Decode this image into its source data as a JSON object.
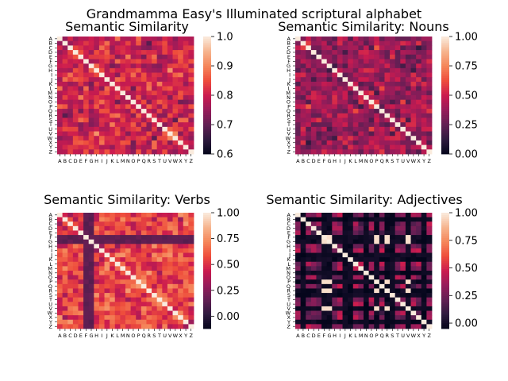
{
  "figure": {
    "suptitle": "Grandmamma Easy's Illuminated scriptural alphabet"
  },
  "palette": {
    "colormap": "rocket",
    "stops": [
      "#03051a",
      "#2e1a3e",
      "#611f53",
      "#961c5a",
      "#cb1b4f",
      "#ee4d3c",
      "#f5865a",
      "#f6b48e",
      "#faebdd"
    ],
    "diagonal": "#faebdd",
    "background": "#ffffff",
    "tick_color": "#000000"
  },
  "chart_data": [
    {
      "type": "heatmap",
      "title": "Semantic Similarity",
      "labels": [
        "A",
        "B",
        "C",
        "D",
        "E",
        "F",
        "G",
        "H",
        "I",
        "J",
        "K",
        "L",
        "M",
        "N",
        "O",
        "P",
        "Q",
        "R",
        "S",
        "T",
        "U",
        "V",
        "W",
        "X",
        "Y",
        "Z"
      ],
      "vmin": 0.6,
      "vmax": 1.0,
      "colorbar_ticks": [
        "0.6",
        "0.7",
        "0.8",
        "0.9",
        "1.0"
      ],
      "offdiag_mean": 0.8,
      "offdiag_spread": 0.05,
      "dark_rows": [],
      "bright_cross": [],
      "seed": 11
    },
    {
      "type": "heatmap",
      "title": "Semantic Similarity: Nouns",
      "labels": [
        "A",
        "B",
        "C",
        "D",
        "E",
        "F",
        "G",
        "H",
        "I",
        "J",
        "K",
        "L",
        "M",
        "N",
        "O",
        "P",
        "Q",
        "R",
        "S",
        "T",
        "U",
        "V",
        "W",
        "X",
        "Y",
        "Z"
      ],
      "vmin": 0.0,
      "vmax": 1.0,
      "colorbar_ticks": [
        "0.00",
        "0.25",
        "0.50",
        "0.75",
        "1.00"
      ],
      "offdiag_mean": 0.38,
      "offdiag_spread": 0.12,
      "dark_rows": [],
      "bright_cross": [],
      "seed": 23
    },
    {
      "type": "heatmap",
      "title": "Semantic Similarity: Verbs",
      "labels": [
        "A",
        "B",
        "C",
        "D",
        "E",
        "F",
        "G",
        "H",
        "I",
        "J",
        "K",
        "L",
        "M",
        "N",
        "O",
        "P",
        "Q",
        "R",
        "S",
        "T",
        "U",
        "V",
        "W",
        "X",
        "Y",
        "Z"
      ],
      "vmin": -0.12,
      "vmax": 1.0,
      "colorbar_ticks": [
        "0.00",
        "0.25",
        "0.50",
        "0.75",
        "1.00"
      ],
      "offdiag_mean": 0.55,
      "offdiag_spread": 0.13,
      "dark_rows": [
        5,
        6
      ],
      "dark_value": 0.12,
      "bright_cross": [],
      "seed": 37
    },
    {
      "type": "heatmap",
      "title": "Semantic Similarity: Adjectives",
      "labels": [
        "A",
        "B",
        "C",
        "D",
        "E",
        "F",
        "G",
        "H",
        "I",
        "J",
        "K",
        "L",
        "M",
        "N",
        "O",
        "P",
        "Q",
        "R",
        "S",
        "T",
        "U",
        "V",
        "W",
        "X",
        "Y",
        "Z"
      ],
      "vmin": -0.05,
      "vmax": 1.0,
      "colorbar_ticks": [
        "0.00",
        "0.25",
        "0.50",
        "0.75",
        "1.00"
      ],
      "offdiag_mean": 0.3,
      "offdiag_spread": 0.12,
      "dark_rows": [
        1,
        5,
        6,
        9,
        10,
        13,
        15,
        17,
        18,
        21,
        24
      ],
      "dark_value": -0.05,
      "bright_cross": [
        5,
        6,
        15,
        17,
        21
      ],
      "seed": 51
    }
  ]
}
